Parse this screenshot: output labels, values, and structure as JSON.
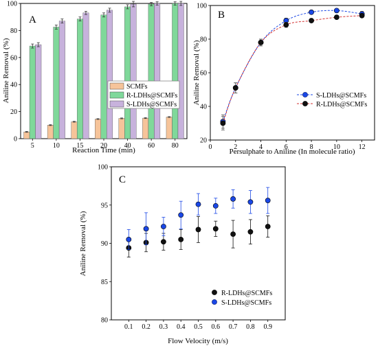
{
  "chart_data": [
    {
      "panel": "A",
      "type": "bar",
      "xlabel": "Reaction Time (min)",
      "ylabel": "Aniline Removal (%)",
      "categories": [
        "5",
        "10",
        "15",
        "20",
        "40",
        "60",
        "80"
      ],
      "ylim": [
        0,
        100
      ],
      "yticks": [
        0,
        20,
        40,
        60,
        80,
        100
      ],
      "legend_position": "center-right",
      "series": [
        {
          "name": "SCMFs",
          "color": "#f6c49a",
          "values": [
            5,
            10,
            12.5,
            14.5,
            15,
            15.2,
            16
          ],
          "errors": [
            0.3,
            0.3,
            0.3,
            0.3,
            0.3,
            0.3,
            0.3
          ]
        },
        {
          "name": "R-LDHs@SCMFs",
          "color": "#7fd89a",
          "values": [
            68.5,
            82.5,
            88.5,
            91.5,
            97.5,
            99.5,
            100
          ],
          "errors": [
            1.5,
            1.5,
            1.5,
            1.5,
            1.5,
            1.2,
            1.2
          ]
        },
        {
          "name": "S-LDHs@SCMFs",
          "color": "#c7b2dc",
          "values": [
            69.5,
            87,
            93,
            95,
            99.5,
            100,
            100
          ],
          "errors": [
            1.5,
            1.5,
            1.2,
            1.5,
            2,
            1.2,
            1.5
          ]
        }
      ]
    },
    {
      "panel": "B",
      "type": "line",
      "xlabel": "Persulphate to Aniline (In molecule ratio)",
      "ylabel": "Aniline Removal (%)",
      "xlim": [
        0,
        13
      ],
      "ylim": [
        20,
        100
      ],
      "xticks": [
        0,
        2,
        4,
        6,
        8,
        10,
        12
      ],
      "yticks": [
        20,
        40,
        60,
        80,
        100
      ],
      "legend_position": "bottom-right",
      "series": [
        {
          "name": "S-LDHs@SCMFs",
          "color": "#1a47e6",
          "x": [
            1,
            2,
            4,
            6,
            8,
            10,
            12
          ],
          "y": [
            31,
            51,
            78,
            91,
            96,
            97,
            95
          ],
          "errors": [
            4,
            3,
            2,
            1.5,
            1,
            1,
            1.5
          ]
        },
        {
          "name": "R-LDHs@SCMFs",
          "color": "#d32f2f",
          "x": [
            1,
            2,
            4,
            6,
            8,
            10,
            12
          ],
          "y": [
            30,
            51,
            78,
            88.5,
            91,
            93,
            94
          ],
          "errors": [
            4,
            3,
            2,
            1.5,
            1,
            1,
            1
          ]
        }
      ]
    },
    {
      "panel": "C",
      "type": "scatter",
      "xlabel": "Flow Velocity (m/s)",
      "ylabel": "Aniline Removal (%)",
      "xlim": [
        0,
        1
      ],
      "ylim": [
        80,
        100
      ],
      "xticks": [
        0.1,
        0.2,
        0.3,
        0.4,
        0.5,
        0.6,
        0.7,
        0.8,
        0.9
      ],
      "yticks": [
        80,
        85,
        90,
        95,
        100
      ],
      "legend_position": "bottom-right",
      "series": [
        {
          "name": "R-LDHs@SCMFs",
          "color": "#111111",
          "x": [
            0.1,
            0.2,
            0.3,
            0.4,
            0.5,
            0.6,
            0.7,
            0.8,
            0.9
          ],
          "y": [
            89.4,
            90.1,
            90.2,
            90.5,
            91.8,
            91.9,
            91.2,
            91.5,
            92.2
          ],
          "errors": [
            1.2,
            1.2,
            1.1,
            1.3,
            1.7,
            1.0,
            1.8,
            1.6,
            1.4
          ]
        },
        {
          "name": "S-LDHs@SCMFs",
          "color": "#1a47e6",
          "x": [
            0.1,
            0.2,
            0.3,
            0.4,
            0.5,
            0.6,
            0.7,
            0.8,
            0.9
          ],
          "y": [
            90.5,
            91.9,
            92.2,
            93.7,
            95.1,
            94.9,
            95.8,
            95.4,
            95.6
          ],
          "errors": [
            1.3,
            2.1,
            1.2,
            1.8,
            1.4,
            1.0,
            1.2,
            1.5,
            1.7
          ]
        }
      ]
    }
  ]
}
